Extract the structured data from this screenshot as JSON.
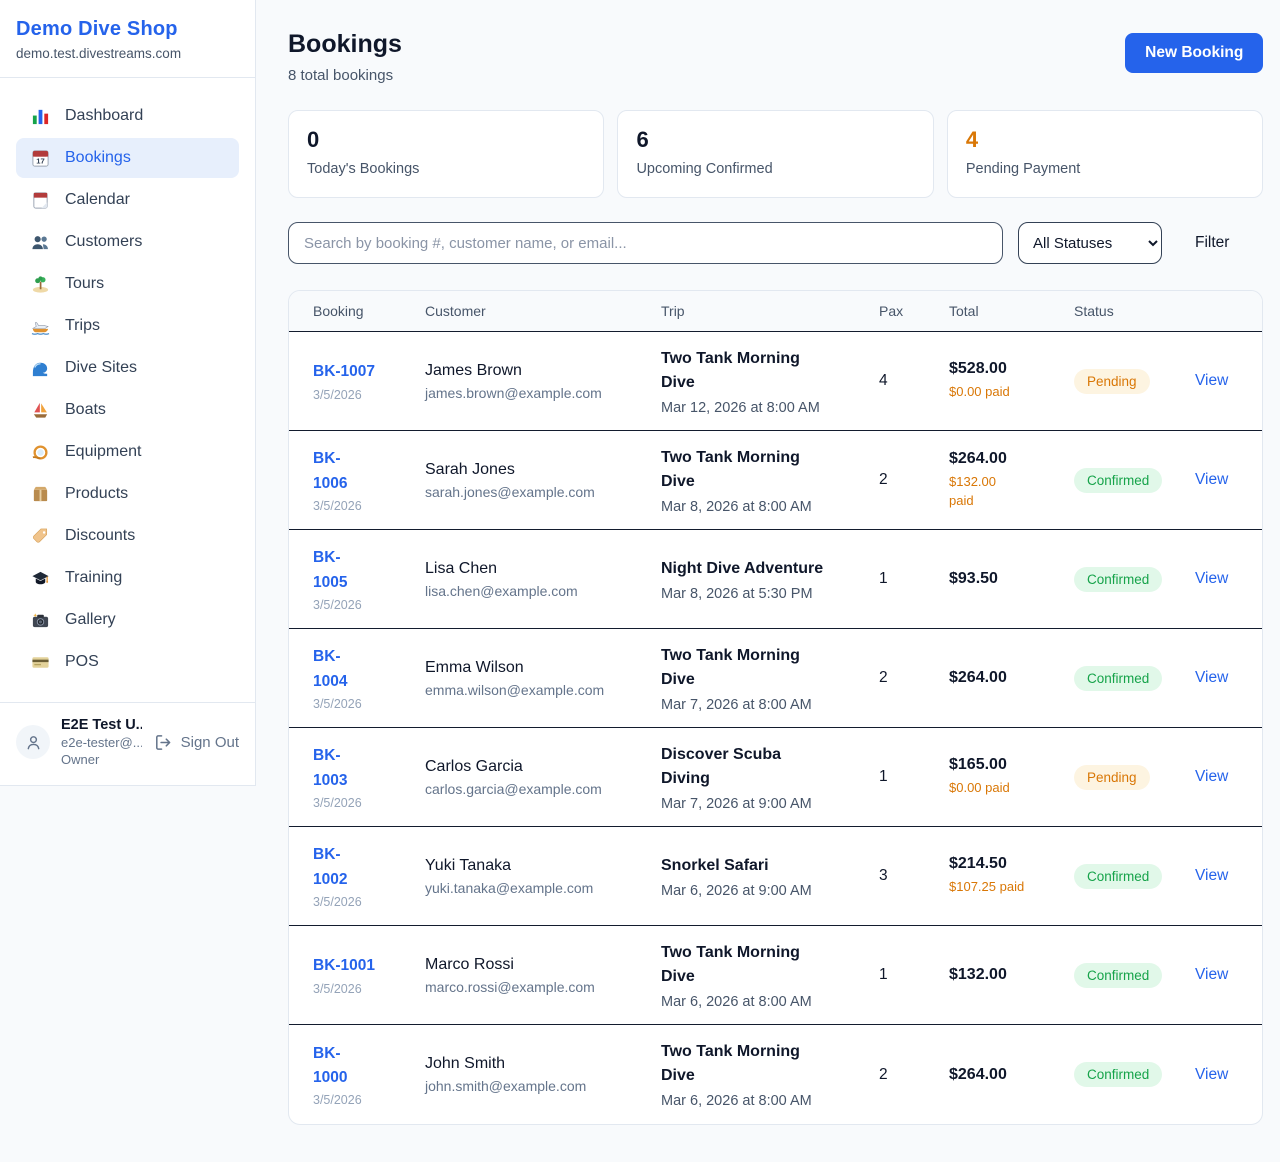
{
  "sidebar": {
    "brand": {
      "name": "Demo Dive Shop",
      "domain": "demo.test.divestreams.com"
    },
    "items": [
      {
        "label": "Dashboard",
        "icon": "bar-chart",
        "active": false
      },
      {
        "label": "Bookings",
        "icon": "calendar-date",
        "active": true
      },
      {
        "label": "Calendar",
        "icon": "calendar",
        "active": false
      },
      {
        "label": "Customers",
        "icon": "people",
        "active": false
      },
      {
        "label": "Tours",
        "icon": "island",
        "active": false
      },
      {
        "label": "Trips",
        "icon": "speedboat",
        "active": false
      },
      {
        "label": "Dive Sites",
        "icon": "wave",
        "active": false
      },
      {
        "label": "Boats",
        "icon": "sailboat",
        "active": false
      },
      {
        "label": "Equipment",
        "icon": "diving-mask",
        "active": false
      },
      {
        "label": "Products",
        "icon": "package",
        "active": false
      },
      {
        "label": "Discounts",
        "icon": "tag",
        "active": false
      },
      {
        "label": "Training",
        "icon": "graduation-cap",
        "active": false
      },
      {
        "label": "Gallery",
        "icon": "camera",
        "active": false
      },
      {
        "label": "POS",
        "icon": "credit-card",
        "active": false
      }
    ],
    "user": {
      "name": "E2E Test U...",
      "email": "e2e-tester@...",
      "role": "Owner",
      "sign_out_label": "Sign Out"
    }
  },
  "header": {
    "title": "Bookings",
    "subtitle": "8 total bookings",
    "new_booking_label": "New Booking"
  },
  "stats": [
    {
      "value": "0",
      "label": "Today's Bookings",
      "value_color": "#0f172a"
    },
    {
      "value": "6",
      "label": "Upcoming Confirmed",
      "value_color": "#0f172a"
    },
    {
      "value": "4",
      "label": "Pending Payment",
      "value_color": "#d97706"
    }
  ],
  "filters": {
    "search_placeholder": "Search by booking #, customer name, or email...",
    "status_selected": "All Statuses",
    "filter_label": "Filter"
  },
  "table": {
    "columns": [
      "Booking",
      "Customer",
      "Trip",
      "Pax",
      "Total",
      "Status"
    ],
    "view_label": "View",
    "rows": [
      {
        "number": "BK-1007",
        "date": "3/5/2026",
        "customer": "James Brown",
        "email": "james.brown@example.com",
        "trip": "Two Tank Morning\nDive",
        "trip_time": "Mar 12, 2026 at 8:00 AM",
        "pax": "4",
        "total": "$528.00",
        "paid": "$0.00 paid",
        "status": "Pending"
      },
      {
        "number": "BK-\n1006",
        "date": "3/5/2026",
        "customer": "Sarah Jones",
        "email": "sarah.jones@example.com",
        "trip": "Two Tank Morning\nDive",
        "trip_time": "Mar 8, 2026 at 8:00 AM",
        "pax": "2",
        "total": "$264.00",
        "paid": "$132.00\npaid",
        "status": "Confirmed"
      },
      {
        "number": "BK-\n1005",
        "date": "3/5/2026",
        "customer": "Lisa Chen",
        "email": "lisa.chen@example.com",
        "trip": "Night Dive Adventure",
        "trip_time": "Mar 8, 2026 at 5:30 PM",
        "pax": "1",
        "total": "$93.50",
        "paid": "",
        "status": "Confirmed"
      },
      {
        "number": "BK-\n1004",
        "date": "3/5/2026",
        "customer": "Emma Wilson",
        "email": "emma.wilson@example.com",
        "trip": "Two Tank Morning\nDive",
        "trip_time": "Mar 7, 2026 at 8:00 AM",
        "pax": "2",
        "total": "$264.00",
        "paid": "",
        "status": "Confirmed"
      },
      {
        "number": "BK-\n1003",
        "date": "3/5/2026",
        "customer": "Carlos Garcia",
        "email": "carlos.garcia@example.com",
        "trip": "Discover Scuba\nDiving",
        "trip_time": "Mar 7, 2026 at 9:00 AM",
        "pax": "1",
        "total": "$165.00",
        "paid": "$0.00 paid",
        "status": "Pending"
      },
      {
        "number": "BK-\n1002",
        "date": "3/5/2026",
        "customer": "Yuki Tanaka",
        "email": "yuki.tanaka@example.com",
        "trip": "Snorkel Safari",
        "trip_time": "Mar 6, 2026 at 9:00 AM",
        "pax": "3",
        "total": "$214.50",
        "paid": "$107.25 paid",
        "status": "Confirmed"
      },
      {
        "number": "BK-1001",
        "date": "3/5/2026",
        "customer": "Marco Rossi",
        "email": "marco.rossi@example.com",
        "trip": "Two Tank Morning\nDive",
        "trip_time": "Mar 6, 2026 at 8:00 AM",
        "pax": "1",
        "total": "$132.00",
        "paid": "",
        "status": "Confirmed"
      },
      {
        "number": "BK-\n1000",
        "date": "3/5/2026",
        "customer": "John Smith",
        "email": "john.smith@example.com",
        "trip": "Two Tank Morning\nDive",
        "trip_time": "Mar 6, 2026 at 8:00 AM",
        "pax": "2",
        "total": "$264.00",
        "paid": "",
        "status": "Confirmed"
      }
    ]
  },
  "colors": {
    "accent": "#2563eb",
    "pending_text": "#d97706",
    "pending_bg": "#fdf4e1",
    "confirmed_text": "#16a34a",
    "confirmed_bg": "#e1f8e9",
    "page_bg": "#f8fafc"
  }
}
